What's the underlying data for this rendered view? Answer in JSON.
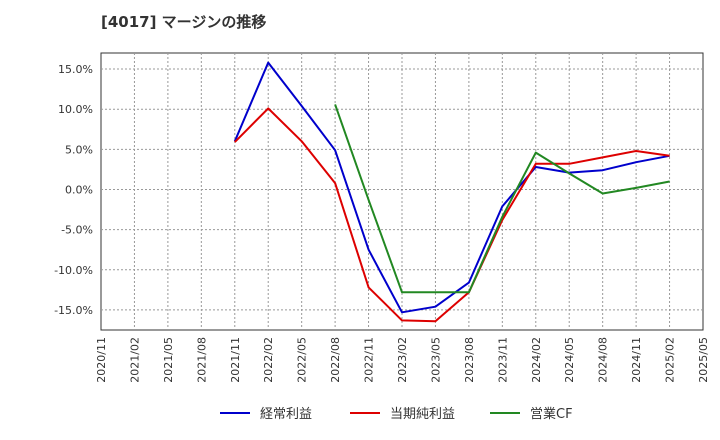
{
  "title": "[4017]  マージンの推移",
  "chart_data": {
    "type": "line",
    "title": "[4017]  マージンの推移",
    "x_ticks": [
      "2020/11",
      "2021/02",
      "2021/05",
      "2021/08",
      "2021/11",
      "2022/02",
      "2022/05",
      "2022/08",
      "2022/11",
      "2023/02",
      "2023/05",
      "2023/08",
      "2023/11",
      "2024/02",
      "2024/05",
      "2024/08",
      "2024/11",
      "2025/02",
      "2025/05"
    ],
    "y_ticks": [
      15.0,
      10.0,
      5.0,
      0.0,
      -5.0,
      -10.0,
      -15.0
    ],
    "y_tick_labels": [
      "15.0%",
      "10.0%",
      "5.0%",
      "0.0%",
      "-5.0%",
      "-10.0%",
      "-15.0%"
    ],
    "ylim": [
      -17.5,
      17.0
    ],
    "grid": true,
    "legend_position": "bottom",
    "series": [
      {
        "name": "経常利益",
        "color": "#0000cc",
        "x": [
          "2021/11",
          "2022/02",
          "2022/05",
          "2022/08",
          "2022/11",
          "2023/02",
          "2023/05",
          "2023/08",
          "2023/11",
          "2024/02",
          "2024/05",
          "2024/08",
          "2024/11",
          "2025/02"
        ],
        "values": [
          6.0,
          15.8,
          10.4,
          4.9,
          -7.5,
          -15.3,
          -14.6,
          -11.6,
          -2.1,
          2.8,
          2.1,
          2.4,
          3.4,
          4.2
        ]
      },
      {
        "name": "当期純利益",
        "color": "#dd0000",
        "x": [
          "2021/11",
          "2022/02",
          "2022/05",
          "2022/08",
          "2022/11",
          "2023/02",
          "2023/05",
          "2023/08",
          "2023/11",
          "2024/02",
          "2024/05",
          "2024/08",
          "2024/11",
          "2025/02"
        ],
        "values": [
          5.9,
          10.1,
          6.0,
          0.8,
          -12.2,
          -16.3,
          -16.4,
          -12.8,
          -3.8,
          3.2,
          3.2,
          4.0,
          4.8,
          4.2
        ]
      },
      {
        "name": "営業CF",
        "color": "#228822",
        "x": [
          "2022/08",
          "2022/11",
          "2023/02",
          "2023/05",
          "2023/08",
          "2023/11",
          "2024/02",
          "2024/05",
          "2024/08",
          "2024/11",
          "2025/02"
        ],
        "values": [
          10.6,
          -1.3,
          -12.8,
          -12.8,
          -12.8,
          -3.4,
          4.6,
          2.0,
          -0.5,
          0.2,
          1.0
        ]
      }
    ]
  }
}
